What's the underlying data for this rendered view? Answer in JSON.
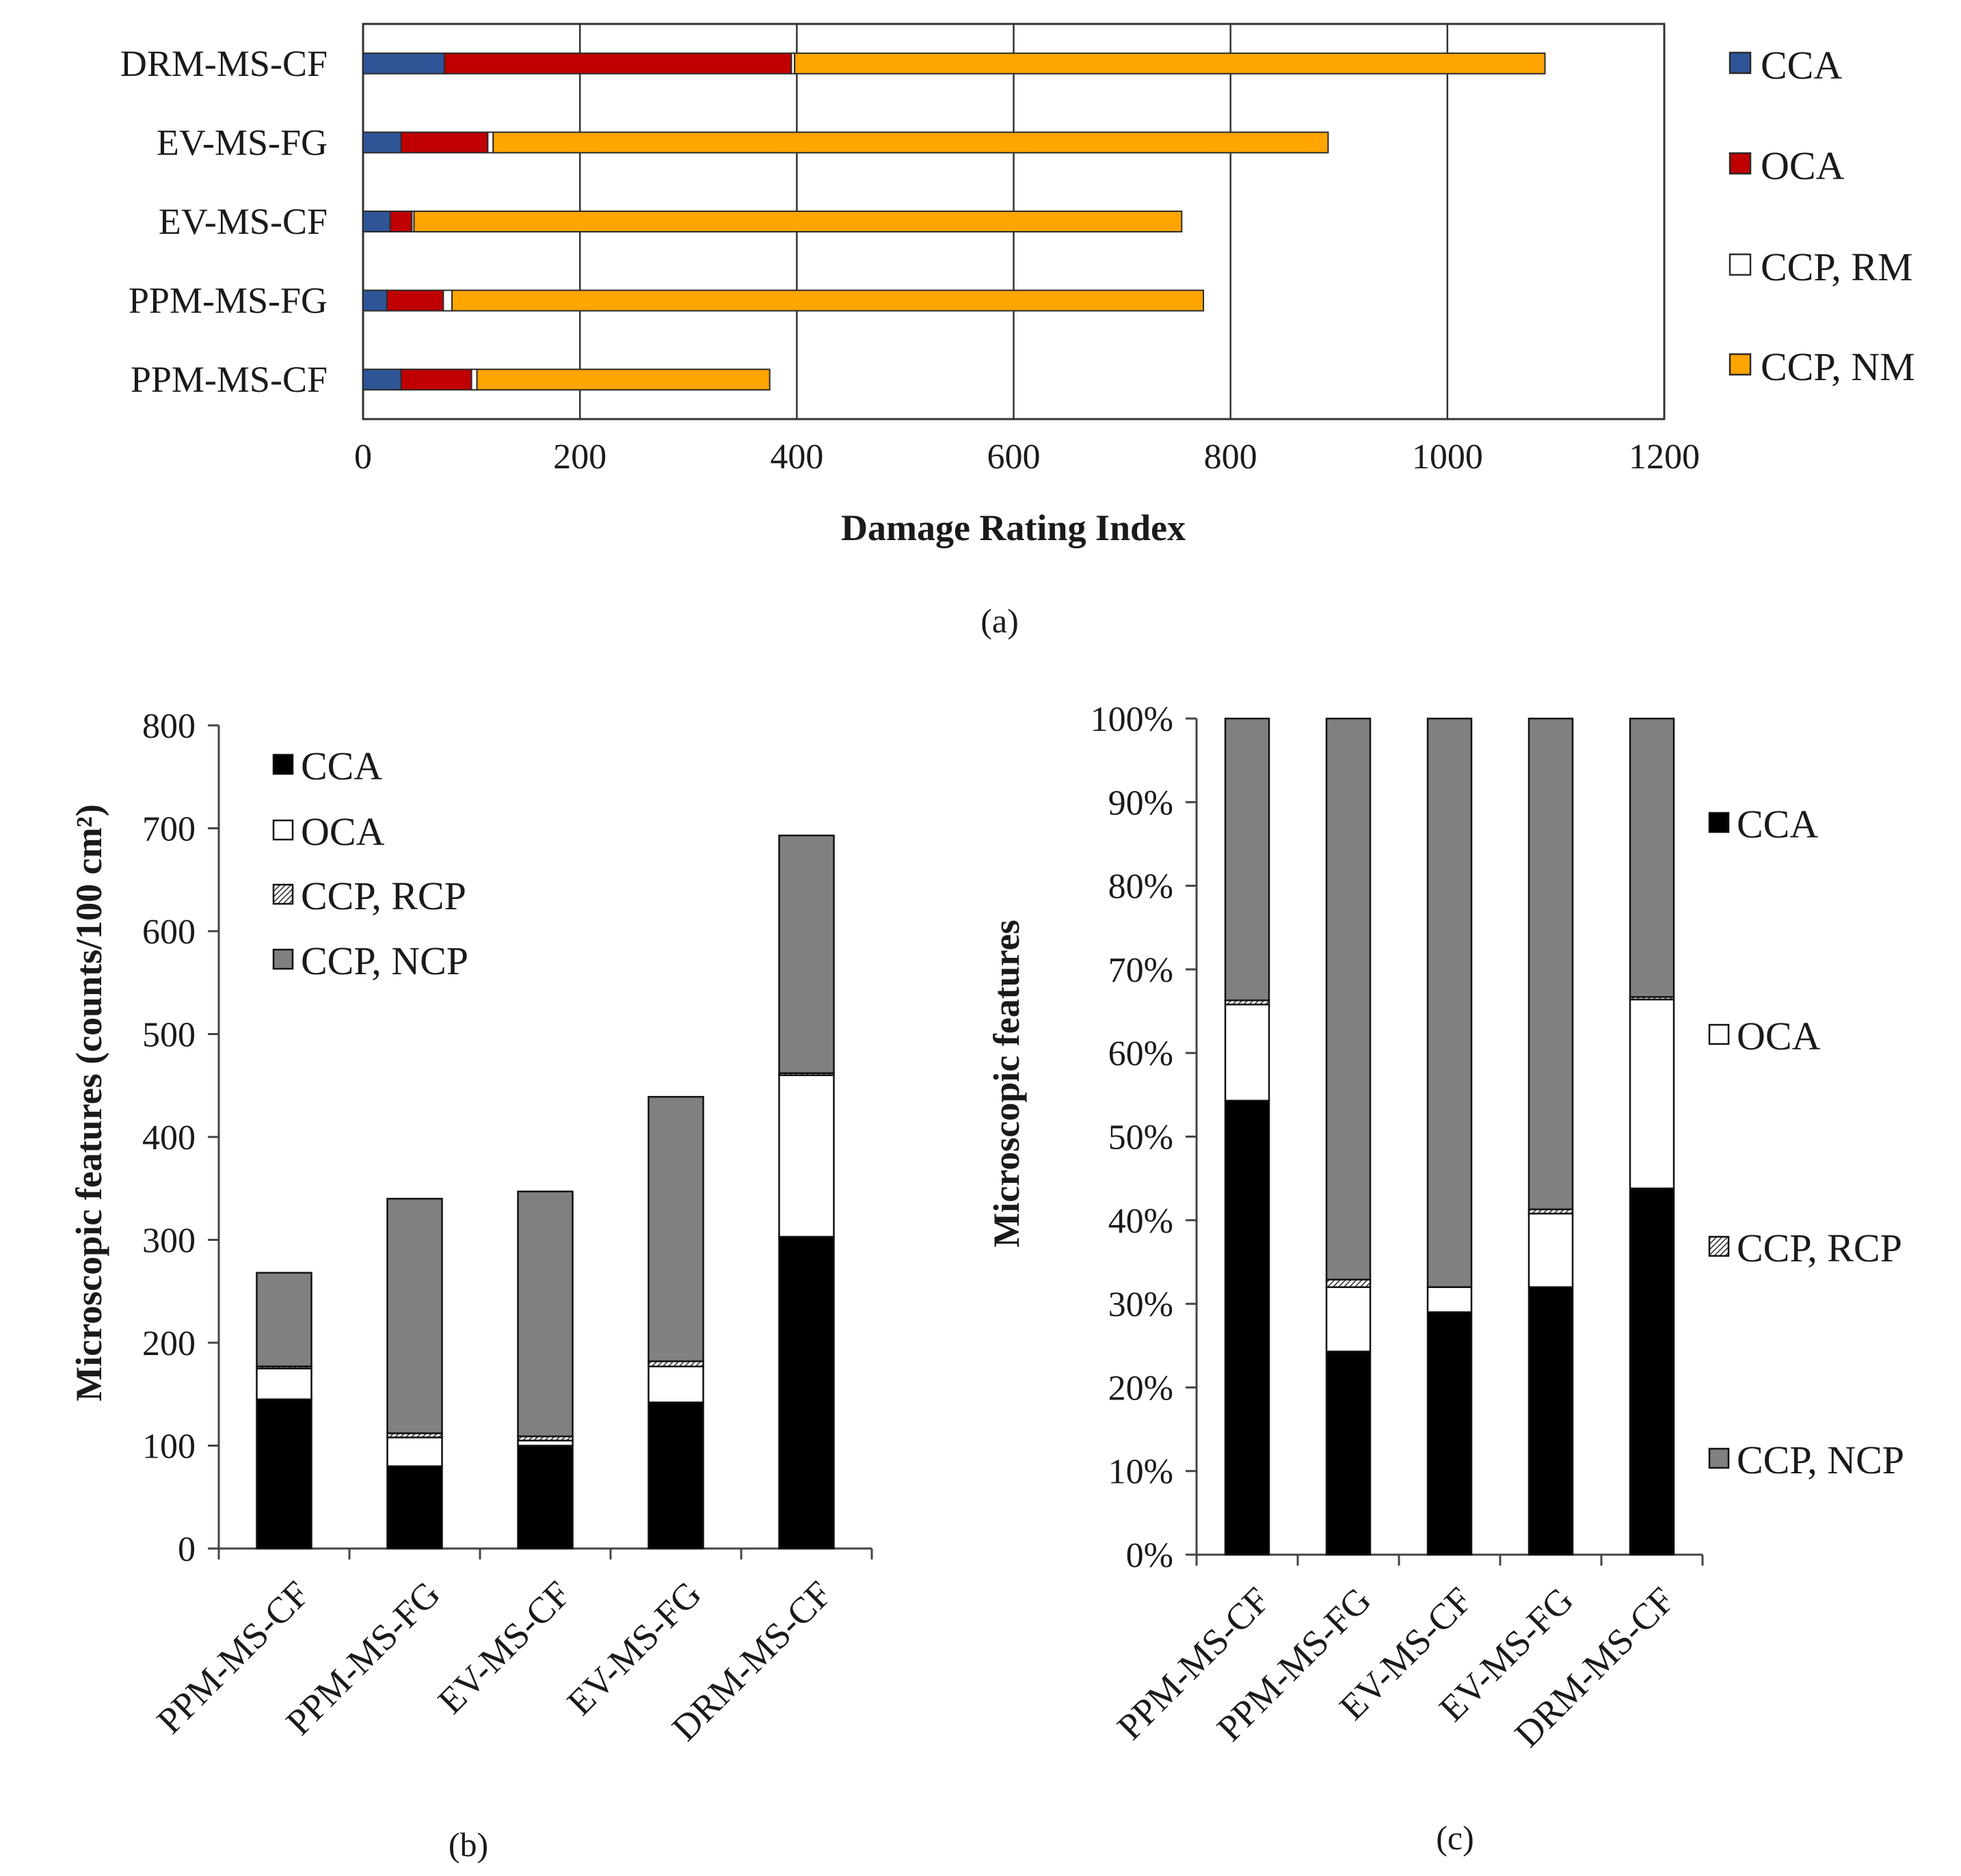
{
  "chart_data": [
    {
      "id": "a",
      "type": "bar",
      "orientation": "horizontal",
      "stacked": true,
      "caption": "(a)",
      "xlabel": "Damage Rating Index",
      "ylabel": "",
      "xlim": [
        0,
        1200
      ],
      "xticks": [
        0,
        200,
        400,
        600,
        800,
        1000,
        1200
      ],
      "xtick_labels": [
        "0",
        "200",
        "400",
        "600",
        "800",
        "1000",
        "1200"
      ],
      "grid": "vertical",
      "legend_position": "right",
      "categories": [
        "DRM-MS-CF",
        "EV-MS-FG",
        "EV-MS-CF",
        "PPM-MS-FG",
        "PPM-MS-CF"
      ],
      "series": [
        {
          "name": "CCA",
          "color": "#2f5597",
          "values": [
            75,
            35,
            25,
            22,
            35
          ]
        },
        {
          "name": "OCA",
          "color": "#c00000",
          "values": [
            320,
            80,
            20,
            52,
            65
          ]
        },
        {
          "name": "CCP, RM",
          "color": "#ffffff",
          "values": [
            3,
            5,
            2,
            8,
            5
          ]
        },
        {
          "name": "CCP, NM",
          "color": "#ffa500",
          "values": [
            692,
            770,
            708,
            693,
            270
          ]
        }
      ]
    },
    {
      "id": "b",
      "type": "bar",
      "stacked": true,
      "caption": "(b)",
      "xlabel": "",
      "ylabel": "Microscopic features (counts/100 cm²)",
      "ylim": [
        0,
        800
      ],
      "yticks": [
        0,
        100,
        200,
        300,
        400,
        500,
        600,
        700,
        800
      ],
      "ytick_labels": [
        "0",
        "100",
        "200",
        "300",
        "400",
        "500",
        "600",
        "700",
        "800"
      ],
      "legend_position": "top-left",
      "categories": [
        "PPM-MS-CF",
        "PPM-MS-FG",
        "EV-MS-CF",
        "EV-MS-FG",
        "DRM-MS-CF"
      ],
      "series": [
        {
          "name": "CCA",
          "color": "#000000",
          "values": [
            145,
            80,
            100,
            142,
            303
          ]
        },
        {
          "name": "OCA",
          "color": "#ffffff",
          "values": [
            30,
            28,
            5,
            35,
            157
          ]
        },
        {
          "name": "CCP, RCP",
          "color": "#ffffff",
          "values": [
            2,
            4,
            4,
            5,
            2
          ]
        },
        {
          "name": "CCP, NCP",
          "color": "#808080",
          "values": [
            91,
            228,
            238,
            257,
            231
          ]
        }
      ]
    },
    {
      "id": "c",
      "type": "bar",
      "stacked": true,
      "percent": true,
      "caption": "(c)",
      "xlabel": "",
      "ylabel": "Microscopic features",
      "ylim": [
        0,
        100
      ],
      "yticks": [
        0,
        10,
        20,
        30,
        40,
        50,
        60,
        70,
        80,
        90,
        100
      ],
      "ytick_labels": [
        "0%",
        "10%",
        "20%",
        "30%",
        "40%",
        "50%",
        "60%",
        "70%",
        "80%",
        "90%",
        "100%"
      ],
      "legend_position": "right",
      "categories": [
        "PPM-MS-CF",
        "PPM-MS-FG",
        "EV-MS-CF",
        "EV-MS-FG",
        "DRM-MS-CF"
      ],
      "series": [
        {
          "name": "CCA",
          "color": "#000000",
          "values": [
            54.3,
            24.3,
            29.0,
            32.0,
            43.8
          ]
        },
        {
          "name": "OCA",
          "color": "#ffffff",
          "values": [
            11.5,
            7.7,
            3.0,
            8.8,
            22.6
          ]
        },
        {
          "name": "CCP, RCP",
          "color": "#ffffff",
          "values": [
            0.5,
            0.9,
            0.0,
            0.5,
            0.3
          ]
        },
        {
          "name": "CCP, NCP",
          "color": "#808080",
          "values": [
            33.7,
            67.1,
            68.0,
            58.7,
            33.3
          ]
        }
      ]
    }
  ]
}
